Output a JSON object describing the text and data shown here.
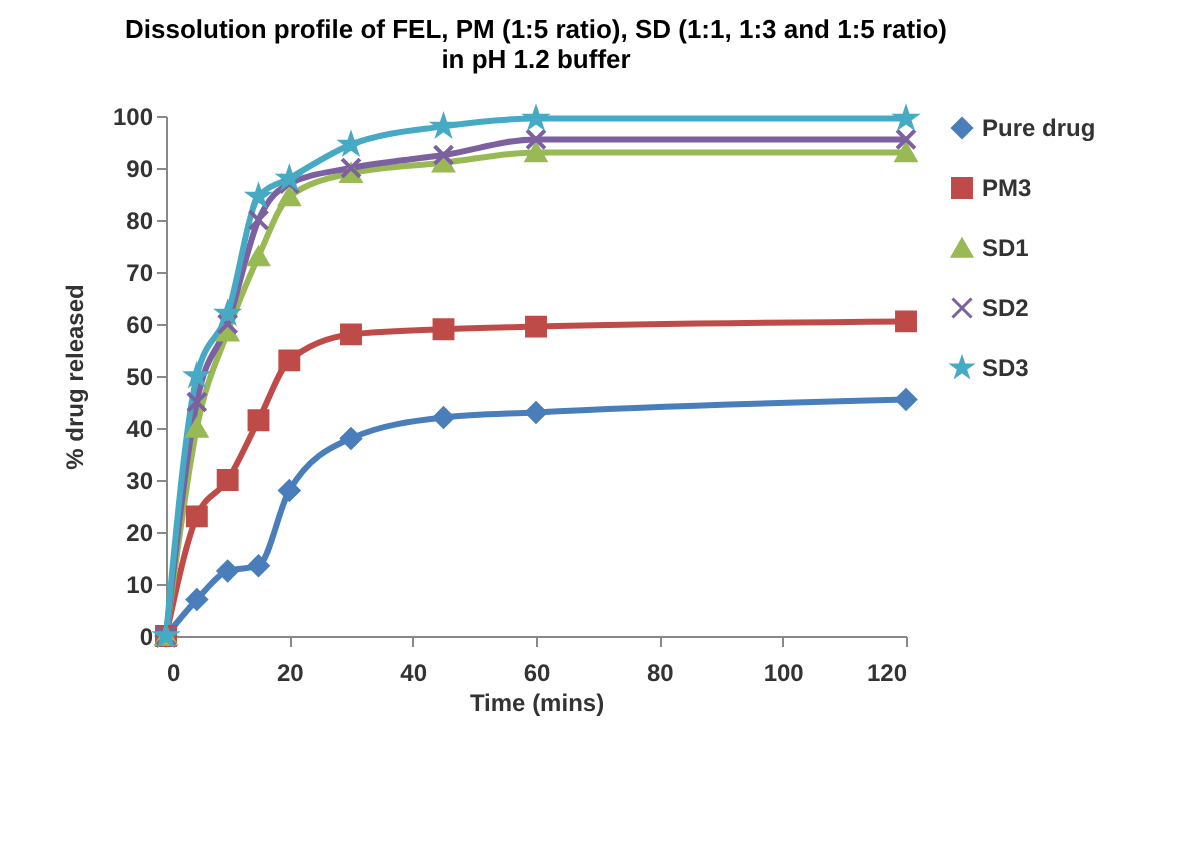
{
  "chart_data": {
    "type": "line",
    "title": [
      "Dissolution profile of FEL, PM (1:5 ratio), SD (1:1, 1:3 and 1:5 ratio)",
      "in  pH 1.2 buffer"
    ],
    "xlabel": "Time (mins)",
    "ylabel": "% drug released",
    "x": [
      0,
      5,
      10,
      15,
      20,
      30,
      45,
      60,
      120
    ],
    "series": [
      {
        "name": "Pure drug",
        "color": "#4a7ebb",
        "marker": "diamond",
        "values": [
          0,
          7,
          12.5,
          13.5,
          28,
          38,
          42,
          43,
          45.5
        ]
      },
      {
        "name": "PM3",
        "color": "#be4b48",
        "marker": "square",
        "values": [
          0,
          23,
          30,
          41.5,
          53,
          58,
          59,
          59.5,
          60.5
        ]
      },
      {
        "name": "SD1",
        "color": "#98b954",
        "marker": "triangle",
        "values": [
          0,
          40,
          58.5,
          73,
          84.5,
          89,
          91,
          93,
          93
        ]
      },
      {
        "name": "SD2",
        "color": "#7d60a0",
        "marker": "cross",
        "values": [
          0,
          45,
          60,
          80,
          87,
          90,
          92.5,
          95.5,
          95.5
        ]
      },
      {
        "name": "SD3",
        "color": "#46aac5",
        "marker": "star",
        "values": [
          0,
          50,
          62,
          84.5,
          88,
          94.5,
          98,
          99.5,
          99.5
        ]
      }
    ],
    "xlim": [
      0,
      120
    ],
    "xticks": [
      0,
      20,
      40,
      60,
      80,
      100,
      120
    ],
    "ylim": [
      0,
      100
    ],
    "yticks": [
      0,
      10,
      20,
      30,
      40,
      50,
      60,
      70,
      80,
      90,
      100
    ],
    "grid": false,
    "legend": "right",
    "line_style": "solid"
  }
}
